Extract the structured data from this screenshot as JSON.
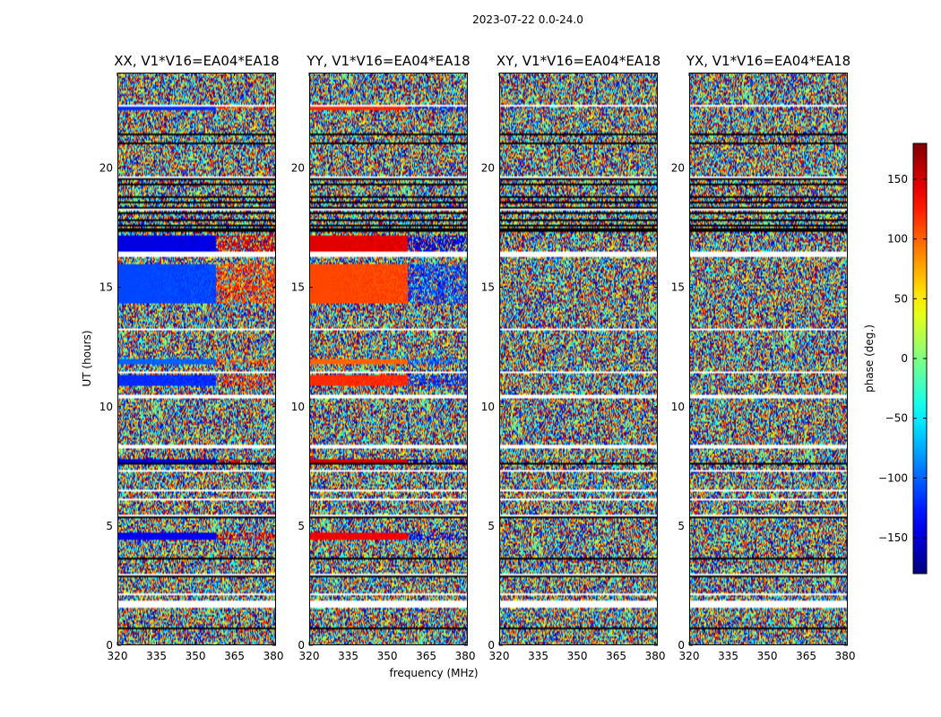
{
  "chart_data": {
    "type": "heatmap",
    "suptitle": "2023-07-22 0.0-24.0",
    "xlabel": "frequency (MHz)",
    "ylabel": "UT (hours)",
    "xlim": [
      320,
      381
    ],
    "ylim": [
      0,
      24
    ],
    "xticks": [
      320,
      335,
      350,
      365,
      380
    ],
    "yticks": [
      0,
      5,
      10,
      15,
      20
    ],
    "colormap": "jet",
    "colorbar": {
      "label": "phase (deg.)",
      "range": [
        -180,
        180
      ],
      "ticks": [
        -150,
        -100,
        -50,
        0,
        50,
        100,
        150
      ],
      "tick_labels": [
        "−150",
        "−100",
        "−50",
        "0",
        "50",
        "100",
        "150"
      ]
    },
    "panels": [
      {
        "title": "XX, V1*V16=EA04*EA18",
        "coherent": true,
        "sign": -1
      },
      {
        "title": "YY, V1*V16=EA04*EA18",
        "coherent": true,
        "sign": 1
      },
      {
        "title": "XY, V1*V16=EA04*EA18",
        "coherent": false,
        "sign": 1
      },
      {
        "title": "YX, V1*V16=EA04*EA18",
        "coherent": false,
        "sign": 1
      }
    ],
    "flagged_hours": [
      [
        1.55,
        1.85
      ],
      [
        16.3,
        16.5
      ]
    ],
    "coherent_bands": [
      {
        "t0": 4.45,
        "t1": 4.75,
        "phase": 140
      },
      {
        "t0": 7.6,
        "t1": 7.8,
        "phase": 150
      },
      {
        "t0": 10.9,
        "t1": 11.3,
        "phase": 120
      },
      {
        "t0": 11.8,
        "t1": 12.0,
        "phase": 100
      },
      {
        "t0": 14.3,
        "t1": 16.0,
        "phase": 110
      },
      {
        "t0": 16.5,
        "t1": 17.2,
        "phase": 145
      },
      {
        "t0": 22.4,
        "t1": 22.6,
        "phase": 120
      }
    ]
  }
}
